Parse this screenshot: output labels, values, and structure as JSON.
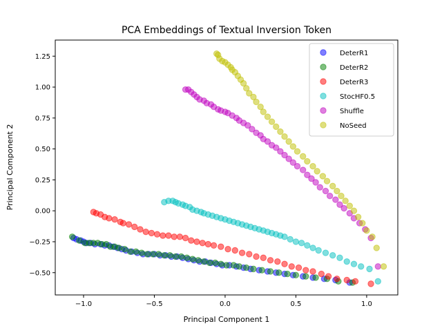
{
  "chart_data": {
    "type": "scatter",
    "title": "PCA Embeddings of Textual Inversion Token",
    "xlabel": "Principal Component 1",
    "ylabel": "Principal Component 2",
    "xlim": [
      -1.2,
      1.22
    ],
    "ylim": [
      -0.68,
      1.38
    ],
    "xticks": [
      -1.0,
      -0.5,
      0.0,
      0.5,
      1.0
    ],
    "xtick_labels": [
      "−1.0",
      "−0.5",
      "0.0",
      "0.5",
      "1.0"
    ],
    "yticks": [
      -0.5,
      -0.25,
      0.0,
      0.25,
      0.5,
      0.75,
      1.0,
      1.25
    ],
    "ytick_labels": [
      "−0.50",
      "−0.25",
      "0.00",
      "0.25",
      "0.50",
      "0.75",
      "1.00",
      "1.25"
    ],
    "grid": false,
    "legend_position": "top-right",
    "point_alpha": 0.5,
    "series": [
      {
        "name": "DeterR1",
        "color": "#0000ff",
        "points": [
          [
            -1.07,
            -0.22
          ],
          [
            -1.05,
            -0.23
          ],
          [
            -1.02,
            -0.24
          ],
          [
            -1.0,
            -0.25
          ],
          [
            -0.98,
            -0.26
          ],
          [
            -0.95,
            -0.26
          ],
          [
            -0.92,
            -0.27
          ],
          [
            -0.88,
            -0.27
          ],
          [
            -0.85,
            -0.28
          ],
          [
            -0.82,
            -0.28
          ],
          [
            -0.79,
            -0.29
          ],
          [
            -0.76,
            -0.3
          ],
          [
            -0.73,
            -0.31
          ],
          [
            -0.7,
            -0.32
          ],
          [
            -0.66,
            -0.33
          ],
          [
            -0.62,
            -0.34
          ],
          [
            -0.58,
            -0.35
          ],
          [
            -0.54,
            -0.35
          ],
          [
            -0.5,
            -0.35
          ],
          [
            -0.46,
            -0.36
          ],
          [
            -0.42,
            -0.36
          ],
          [
            -0.38,
            -0.37
          ],
          [
            -0.34,
            -0.37
          ],
          [
            -0.3,
            -0.38
          ],
          [
            -0.26,
            -0.39
          ],
          [
            -0.22,
            -0.4
          ],
          [
            -0.18,
            -0.41
          ],
          [
            -0.14,
            -0.41
          ],
          [
            -0.1,
            -0.42
          ],
          [
            -0.06,
            -0.43
          ],
          [
            -0.02,
            -0.44
          ],
          [
            0.03,
            -0.44
          ],
          [
            0.08,
            -0.45
          ],
          [
            0.13,
            -0.46
          ],
          [
            0.18,
            -0.47
          ],
          [
            0.24,
            -0.48
          ],
          [
            0.3,
            -0.49
          ],
          [
            0.36,
            -0.5
          ],
          [
            0.42,
            -0.51
          ],
          [
            0.48,
            -0.52
          ],
          [
            0.55,
            -0.53
          ],
          [
            0.62,
            -0.54
          ],
          [
            0.7,
            -0.55
          ],
          [
            0.78,
            -0.56
          ],
          [
            0.88,
            -0.58
          ]
        ]
      },
      {
        "name": "DeterR2",
        "color": "#008000",
        "points": [
          [
            -1.08,
            -0.21
          ],
          [
            -1.03,
            -0.24
          ],
          [
            -0.99,
            -0.26
          ],
          [
            -0.96,
            -0.26
          ],
          [
            -0.93,
            -0.26
          ],
          [
            -0.9,
            -0.26
          ],
          [
            -0.87,
            -0.27
          ],
          [
            -0.84,
            -0.27
          ],
          [
            -0.81,
            -0.29
          ],
          [
            -0.78,
            -0.29
          ],
          [
            -0.75,
            -0.3
          ],
          [
            -0.71,
            -0.31
          ],
          [
            -0.67,
            -0.33
          ],
          [
            -0.63,
            -0.33
          ],
          [
            -0.59,
            -0.34
          ],
          [
            -0.55,
            -0.35
          ],
          [
            -0.51,
            -0.35
          ],
          [
            -0.47,
            -0.35
          ],
          [
            -0.43,
            -0.36
          ],
          [
            -0.39,
            -0.36
          ],
          [
            -0.35,
            -0.37
          ],
          [
            -0.31,
            -0.37
          ],
          [
            -0.27,
            -0.38
          ],
          [
            -0.23,
            -0.39
          ],
          [
            -0.19,
            -0.4
          ],
          [
            -0.15,
            -0.41
          ],
          [
            -0.11,
            -0.42
          ],
          [
            -0.07,
            -0.42
          ],
          [
            -0.03,
            -0.43
          ],
          [
            0.01,
            -0.44
          ],
          [
            0.06,
            -0.44
          ],
          [
            0.1,
            -0.45
          ],
          [
            0.15,
            -0.46
          ],
          [
            0.2,
            -0.47
          ],
          [
            0.26,
            -0.48
          ],
          [
            0.32,
            -0.49
          ],
          [
            0.38,
            -0.5
          ],
          [
            0.44,
            -0.51
          ],
          [
            0.5,
            -0.52
          ],
          [
            0.57,
            -0.53
          ],
          [
            0.64,
            -0.54
          ],
          [
            0.72,
            -0.55
          ],
          [
            0.8,
            -0.57
          ],
          [
            0.9,
            -0.58
          ]
        ]
      },
      {
        "name": "DeterR3",
        "color": "#ff0000",
        "points": [
          [
            -0.93,
            -0.01
          ],
          [
            -0.91,
            -0.02
          ],
          [
            -0.88,
            -0.03
          ],
          [
            -0.85,
            -0.05
          ],
          [
            -0.82,
            -0.06
          ],
          [
            -0.78,
            -0.07
          ],
          [
            -0.74,
            -0.09
          ],
          [
            -0.72,
            -0.1
          ],
          [
            -0.68,
            -0.11
          ],
          [
            -0.64,
            -0.13
          ],
          [
            -0.6,
            -0.15
          ],
          [
            -0.56,
            -0.17
          ],
          [
            -0.52,
            -0.18
          ],
          [
            -0.48,
            -0.19
          ],
          [
            -0.44,
            -0.2
          ],
          [
            -0.4,
            -0.2
          ],
          [
            -0.36,
            -0.21
          ],
          [
            -0.32,
            -0.21
          ],
          [
            -0.28,
            -0.22
          ],
          [
            -0.24,
            -0.24
          ],
          [
            -0.2,
            -0.25
          ],
          [
            -0.16,
            -0.26
          ],
          [
            -0.12,
            -0.27
          ],
          [
            -0.08,
            -0.28
          ],
          [
            -0.03,
            -0.29
          ],
          [
            0.02,
            -0.31
          ],
          [
            0.07,
            -0.32
          ],
          [
            0.12,
            -0.34
          ],
          [
            0.17,
            -0.35
          ],
          [
            0.22,
            -0.37
          ],
          [
            0.27,
            -0.38
          ],
          [
            0.32,
            -0.4
          ],
          [
            0.37,
            -0.41
          ],
          [
            0.42,
            -0.43
          ],
          [
            0.47,
            -0.45
          ],
          [
            0.52,
            -0.46
          ],
          [
            0.57,
            -0.48
          ],
          [
            0.62,
            -0.49
          ],
          [
            0.68,
            -0.51
          ],
          [
            0.73,
            -0.53
          ],
          [
            0.79,
            -0.55
          ],
          [
            0.86,
            -0.56
          ],
          [
            0.92,
            -0.57
          ],
          [
            1.03,
            -0.59
          ]
        ]
      },
      {
        "name": "StocHF0.5",
        "color": "#00bfbf",
        "points": [
          [
            -0.43,
            0.07
          ],
          [
            -0.4,
            0.08
          ],
          [
            -0.37,
            0.08
          ],
          [
            -0.35,
            0.07
          ],
          [
            -0.33,
            0.06
          ],
          [
            -0.3,
            0.05
          ],
          [
            -0.28,
            0.04
          ],
          [
            -0.25,
            0.03
          ],
          [
            -0.23,
            0.01
          ],
          [
            -0.2,
            0.0
          ],
          [
            -0.17,
            -0.01
          ],
          [
            -0.15,
            -0.02
          ],
          [
            -0.12,
            -0.03
          ],
          [
            -0.09,
            -0.04
          ],
          [
            -0.06,
            -0.05
          ],
          [
            -0.03,
            -0.06
          ],
          [
            0.0,
            -0.07
          ],
          [
            0.03,
            -0.08
          ],
          [
            0.06,
            -0.09
          ],
          [
            0.09,
            -0.1
          ],
          [
            0.12,
            -0.11
          ],
          [
            0.15,
            -0.12
          ],
          [
            0.18,
            -0.13
          ],
          [
            0.21,
            -0.14
          ],
          [
            0.24,
            -0.15
          ],
          [
            0.27,
            -0.16
          ],
          [
            0.3,
            -0.17
          ],
          [
            0.33,
            -0.18
          ],
          [
            0.36,
            -0.19
          ],
          [
            0.39,
            -0.2
          ],
          [
            0.42,
            -0.21
          ],
          [
            0.46,
            -0.23
          ],
          [
            0.5,
            -0.25
          ],
          [
            0.54,
            -0.26
          ],
          [
            0.58,
            -0.28
          ],
          [
            0.62,
            -0.3
          ],
          [
            0.66,
            -0.32
          ],
          [
            0.71,
            -0.34
          ],
          [
            0.76,
            -0.36
          ],
          [
            0.81,
            -0.38
          ],
          [
            0.86,
            -0.41
          ],
          [
            0.91,
            -0.43
          ],
          [
            0.96,
            -0.45
          ],
          [
            1.02,
            -0.47
          ],
          [
            1.08,
            -0.57
          ]
        ]
      },
      {
        "name": "Shuffle",
        "color": "#bf00bf",
        "points": [
          [
            -0.28,
            0.98
          ],
          [
            -0.26,
            0.98
          ],
          [
            -0.24,
            0.96
          ],
          [
            -0.22,
            0.94
          ],
          [
            -0.2,
            0.92
          ],
          [
            -0.18,
            0.9
          ],
          [
            -0.15,
            0.89
          ],
          [
            -0.13,
            0.87
          ],
          [
            -0.1,
            0.86
          ],
          [
            -0.08,
            0.84
          ],
          [
            -0.05,
            0.82
          ],
          [
            -0.03,
            0.81
          ],
          [
            0.0,
            0.8
          ],
          [
            0.02,
            0.79
          ],
          [
            0.05,
            0.77
          ],
          [
            0.08,
            0.75
          ],
          [
            0.1,
            0.73
          ],
          [
            0.13,
            0.71
          ],
          [
            0.16,
            0.69
          ],
          [
            0.19,
            0.66
          ],
          [
            0.22,
            0.63
          ],
          [
            0.25,
            0.61
          ],
          [
            0.27,
            0.58
          ],
          [
            0.3,
            0.56
          ],
          [
            0.33,
            0.53
          ],
          [
            0.36,
            0.51
          ],
          [
            0.39,
            0.48
          ],
          [
            0.42,
            0.45
          ],
          [
            0.45,
            0.42
          ],
          [
            0.48,
            0.39
          ],
          [
            0.51,
            0.36
          ],
          [
            0.55,
            0.33
          ],
          [
            0.58,
            0.29
          ],
          [
            0.61,
            0.26
          ],
          [
            0.64,
            0.23
          ],
          [
            0.67,
            0.19
          ],
          [
            0.71,
            0.16
          ],
          [
            0.74,
            0.12
          ],
          [
            0.78,
            0.09
          ],
          [
            0.81,
            0.05
          ],
          [
            0.84,
            0.02
          ],
          [
            0.88,
            -0.02
          ],
          [
            0.91,
            -0.06
          ],
          [
            0.95,
            -0.1
          ],
          [
            0.99,
            -0.15
          ],
          [
            1.03,
            -0.22
          ],
          [
            1.08,
            -0.45
          ]
        ]
      },
      {
        "name": "NoSeed",
        "color": "#bfbf00",
        "points": [
          [
            -0.06,
            1.27
          ],
          [
            -0.05,
            1.26
          ],
          [
            -0.04,
            1.23
          ],
          [
            -0.02,
            1.21
          ],
          [
            0.0,
            1.2
          ],
          [
            0.02,
            1.18
          ],
          [
            0.04,
            1.16
          ],
          [
            0.05,
            1.14
          ],
          [
            0.07,
            1.12
          ],
          [
            0.09,
            1.09
          ],
          [
            0.11,
            1.06
          ],
          [
            0.13,
            1.03
          ],
          [
            0.15,
            0.99
          ],
          [
            0.17,
            0.95
          ],
          [
            0.2,
            0.92
          ],
          [
            0.22,
            0.88
          ],
          [
            0.25,
            0.84
          ],
          [
            0.27,
            0.8
          ],
          [
            0.3,
            0.76
          ],
          [
            0.33,
            0.72
          ],
          [
            0.36,
            0.68
          ],
          [
            0.39,
            0.64
          ],
          [
            0.42,
            0.6
          ],
          [
            0.45,
            0.56
          ],
          [
            0.48,
            0.52
          ],
          [
            0.51,
            0.48
          ],
          [
            0.55,
            0.44
          ],
          [
            0.58,
            0.4
          ],
          [
            0.62,
            0.36
          ],
          [
            0.65,
            0.32
          ],
          [
            0.69,
            0.28
          ],
          [
            0.72,
            0.24
          ],
          [
            0.76,
            0.2
          ],
          [
            0.79,
            0.16
          ],
          [
            0.82,
            0.12
          ],
          [
            0.85,
            0.08
          ],
          [
            0.88,
            0.04
          ],
          [
            0.91,
            0.0
          ],
          [
            0.94,
            -0.05
          ],
          [
            0.97,
            -0.1
          ],
          [
            1.0,
            -0.16
          ],
          [
            1.04,
            -0.21
          ],
          [
            1.07,
            -0.3
          ],
          [
            1.12,
            -0.45
          ]
        ]
      }
    ]
  }
}
